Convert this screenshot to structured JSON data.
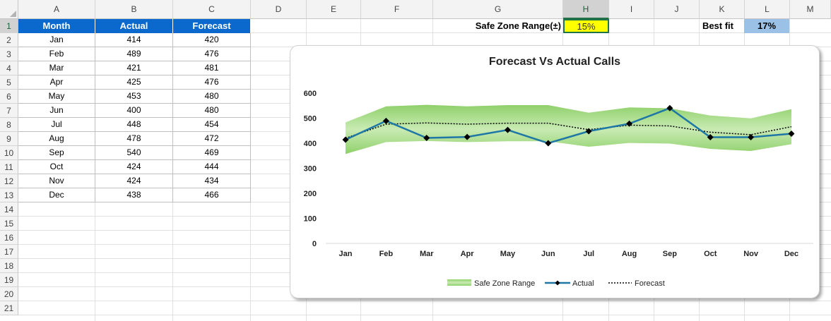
{
  "columns": [
    "A",
    "B",
    "C",
    "D",
    "E",
    "F",
    "G",
    "H",
    "I",
    "J",
    "K",
    "L",
    "M"
  ],
  "selected_column": "H",
  "rows": [
    "1",
    "2",
    "3",
    "4",
    "5",
    "6",
    "7",
    "8",
    "9",
    "10",
    "11",
    "12",
    "13",
    "14",
    "15",
    "16",
    "17",
    "18",
    "19",
    "20",
    "21"
  ],
  "selected_row": "1",
  "table": {
    "headers": [
      "Month",
      "Actual",
      "Forecast"
    ],
    "rows": [
      [
        "Jan",
        "414",
        "420"
      ],
      [
        "Feb",
        "489",
        "476"
      ],
      [
        "Mar",
        "421",
        "481"
      ],
      [
        "Apr",
        "425",
        "476"
      ],
      [
        "May",
        "453",
        "480"
      ],
      [
        "Jun",
        "400",
        "480"
      ],
      [
        "Jul",
        "448",
        "454"
      ],
      [
        "Aug",
        "478",
        "472"
      ],
      [
        "Sep",
        "540",
        "469"
      ],
      [
        "Oct",
        "424",
        "444"
      ],
      [
        "Nov",
        "424",
        "434"
      ],
      [
        "Dec",
        "438",
        "466"
      ]
    ]
  },
  "safe_zone": {
    "label": "Safe Zone Range(±)",
    "value": "15%"
  },
  "best_fit": {
    "label": "Best fit",
    "value": "17%"
  },
  "colors": {
    "header_blue": "#0b68cc",
    "band_green": "#8fd06a",
    "actual_line": "#1f77a5",
    "forecast_line": "#000000"
  },
  "chart_data": {
    "type": "line",
    "title": "Forecast Vs Actual Calls",
    "categories": [
      "Jan",
      "Feb",
      "Mar",
      "Apr",
      "May",
      "Jun",
      "Jul",
      "Aug",
      "Sep",
      "Oct",
      "Nov",
      "Dec"
    ],
    "series": [
      {
        "name": "Actual",
        "values": [
          414,
          489,
          421,
          425,
          453,
          400,
          448,
          478,
          540,
          424,
          424,
          438
        ]
      },
      {
        "name": "Forecast",
        "values": [
          420,
          476,
          481,
          476,
          480,
          480,
          454,
          472,
          469,
          444,
          434,
          466
        ]
      }
    ],
    "band": {
      "name": "Safe Zone Range",
      "range": 0.15
    },
    "ylim": [
      0,
      600
    ],
    "yticks": [
      "0",
      "100",
      "200",
      "300",
      "400",
      "500",
      "600"
    ],
    "legend": [
      "Safe Zone Range",
      "Actual",
      "Forecast"
    ],
    "legend_position": "bottom",
    "grid": false
  }
}
